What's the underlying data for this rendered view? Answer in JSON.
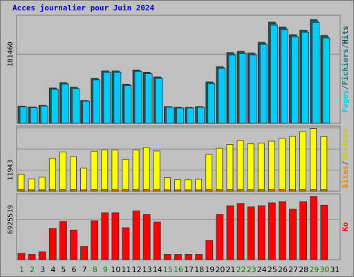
{
  "title": "Acces journalier pour Juin 2024",
  "colors": {
    "background": "#c0c0c0",
    "frame_border": "#777777",
    "title": "#0000cc",
    "grid": "#888888",
    "pages": "#00ccff",
    "files": "#1a7a8c",
    "hits": "#006060",
    "visits": "#ffff00",
    "sites": "#ff8000",
    "kb": "#ff0000",
    "day_normal": "#000000",
    "day_weekend": "#008000"
  },
  "chart_data": [
    {
      "type": "bar",
      "panel": "hits",
      "categories": [
        "1",
        "2",
        "3",
        "4",
        "5",
        "6",
        "7",
        "8",
        "9",
        "10",
        "11",
        "12",
        "13",
        "14",
        "15",
        "16",
        "17",
        "18",
        "19",
        "20",
        "21",
        "22",
        "23",
        "24",
        "25",
        "26",
        "27",
        "28",
        "29",
        "30",
        "31"
      ],
      "y_tick_label": "181460",
      "y_tick_value": 181460,
      "axis_labels": [
        {
          "text": "Pages",
          "color": "#00ccff"
        },
        {
          "text": "/",
          "color": "#555555"
        },
        {
          "text": "Fichiers",
          "color": "#1a7a8c"
        },
        {
          "text": "/",
          "color": "#555555"
        },
        {
          "text": "Hits",
          "color": "#006060"
        }
      ],
      "series": [
        {
          "name": "Hits",
          "values": [
            45000,
            43000,
            47000,
            93000,
            107000,
            95000,
            60000,
            118000,
            138000,
            138000,
            103000,
            140000,
            134000,
            122000,
            44000,
            42000,
            42000,
            44000,
            109000,
            149000,
            186000,
            189000,
            185000,
            213000,
            266000,
            253000,
            233000,
            245000,
            273000,
            231000,
            0
          ]
        },
        {
          "name": "Fichiers",
          "values": [
            44000,
            42000,
            46000,
            91000,
            105000,
            93000,
            59000,
            116000,
            136000,
            136000,
            101000,
            138000,
            132000,
            120000,
            43000,
            41000,
            41000,
            43000,
            106000,
            146000,
            182000,
            186000,
            182000,
            210000,
            262000,
            249000,
            230000,
            242000,
            269000,
            227000,
            0
          ]
        },
        {
          "name": "Pages",
          "values": [
            43000,
            41000,
            45000,
            89000,
            103000,
            91000,
            58000,
            114000,
            134000,
            134000,
            99000,
            136000,
            130000,
            118000,
            42000,
            40000,
            40000,
            42000,
            104000,
            144000,
            179000,
            183000,
            179000,
            207000,
            258000,
            246000,
            227000,
            239000,
            265000,
            224000,
            0
          ]
        }
      ]
    },
    {
      "type": "bar",
      "panel": "visits",
      "categories": [
        "1",
        "2",
        "3",
        "4",
        "5",
        "6",
        "7",
        "8",
        "9",
        "10",
        "11",
        "12",
        "13",
        "14",
        "15",
        "16",
        "17",
        "18",
        "19",
        "20",
        "21",
        "22",
        "23",
        "24",
        "25",
        "26",
        "27",
        "28",
        "29",
        "30",
        "31"
      ],
      "y_tick_label": "11943",
      "y_tick_value": 11943,
      "axis_labels": [
        {
          "text": "Sites",
          "color": "#ff8000"
        },
        {
          "text": "/",
          "color": "#555555"
        },
        {
          "text": "Visites",
          "color": "#cccc00"
        }
      ],
      "series": [
        {
          "name": "Visites",
          "values": [
            9500,
            7000,
            7900,
            18500,
            22200,
            19500,
            13000,
            22700,
            23300,
            23300,
            18000,
            23300,
            24600,
            22800,
            7600,
            6400,
            6400,
            6700,
            20800,
            24300,
            26500,
            28700,
            26800,
            27200,
            28300,
            30000,
            31000,
            33800,
            35500,
            30900,
            0
          ]
        },
        {
          "name": "Sites",
          "values": [
            900,
            800,
            800,
            900,
            900,
            900,
            800,
            900,
            900,
            900,
            900,
            900,
            900,
            900,
            800,
            800,
            800,
            800,
            900,
            900,
            900,
            900,
            900,
            900,
            900,
            900,
            900,
            900,
            900,
            900,
            0
          ]
        }
      ]
    },
    {
      "type": "bar",
      "panel": "kb",
      "categories": [
        "1",
        "2",
        "3",
        "4",
        "5",
        "6",
        "7",
        "8",
        "9",
        "10",
        "11",
        "12",
        "13",
        "14",
        "15",
        "16",
        "17",
        "18",
        "19",
        "20",
        "21",
        "22",
        "23",
        "24",
        "25",
        "26",
        "27",
        "28",
        "29",
        "30",
        "31"
      ],
      "y_tick_label": "6925519",
      "y_tick_value": 6925519,
      "axis_labels": [
        {
          "text": "Ko",
          "color": "#ff0000"
        }
      ],
      "series": [
        {
          "name": "Ko",
          "values": [
            1100000,
            900000,
            1350000,
            5400000,
            6600000,
            5100000,
            2300000,
            6700000,
            8100000,
            8100000,
            5500000,
            8400000,
            7800000,
            6500000,
            900000,
            900000,
            900000,
            900000,
            3300000,
            7800000,
            9300000,
            9700000,
            9100000,
            9300000,
            9800000,
            10000000,
            8700000,
            10000000,
            10900000,
            9400000,
            0
          ]
        }
      ]
    }
  ],
  "x_axis": {
    "labels": [
      "1",
      "2",
      "3",
      "4",
      "5",
      "6",
      "7",
      "8",
      "9",
      "10",
      "11",
      "12",
      "13",
      "14",
      "15",
      "16",
      "17",
      "18",
      "19",
      "20",
      "21",
      "22",
      "23",
      "24",
      "25",
      "26",
      "27",
      "28",
      "29",
      "30",
      "31"
    ],
    "weekend_days": [
      "1",
      "2",
      "8",
      "9",
      "15",
      "16",
      "22",
      "23",
      "29",
      "30"
    ]
  }
}
